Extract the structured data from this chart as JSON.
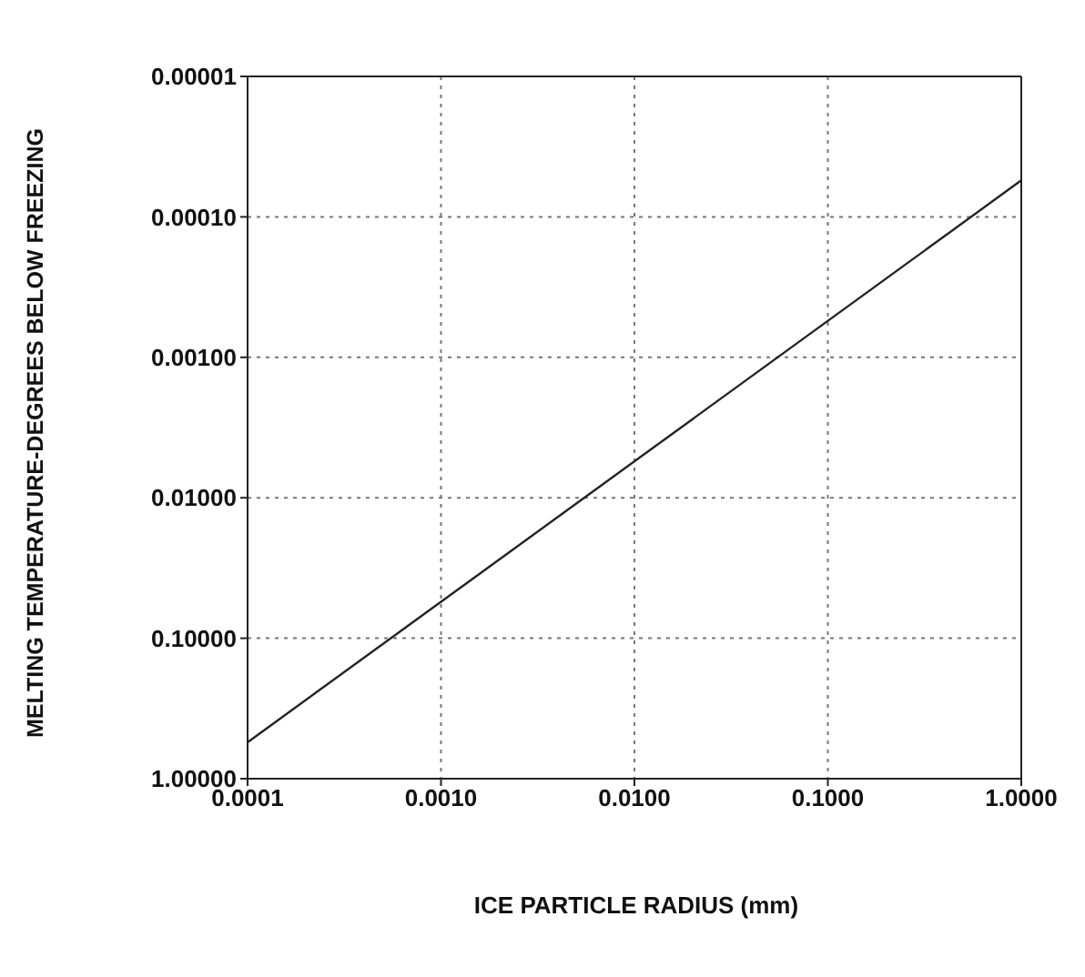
{
  "chart_data": {
    "type": "line",
    "xlabel": "ICE PARTICLE RADIUS (mm)",
    "ylabel": "MELTING TEMPERATURE-DEGREES BELOW FREEZING",
    "x": [
      0.0001,
      1
    ],
    "series": [
      {
        "color": "#222222",
        "values": [
          0.55,
          5.5e-05
        ]
      }
    ],
    "log": "xy",
    "grid": true,
    "marker": "none",
    "line_style": "solid",
    "xlim": [
      0.0001,
      1
    ],
    "xticks": [
      {
        "value": 0.0001,
        "label": "0.0001"
      },
      {
        "value": 0.001,
        "label": "0.0010"
      },
      {
        "value": 0.01,
        "label": "0.0100"
      },
      {
        "value": 0.1,
        "label": "0.1000"
      },
      {
        "value": 1,
        "label": "1.0000"
      }
    ],
    "ylim": [
      1,
      1e-05
    ],
    "yticks": [
      {
        "value": 1e-05,
        "label": "0.00001"
      },
      {
        "value": 0.0001,
        "label": "0.00010"
      },
      {
        "value": 0.001,
        "label": "0.00100"
      },
      {
        "value": 0.01,
        "label": "0.01000"
      },
      {
        "value": 0.1,
        "label": "0.10000"
      },
      {
        "value": 1,
        "label": "1.00000"
      }
    ]
  }
}
